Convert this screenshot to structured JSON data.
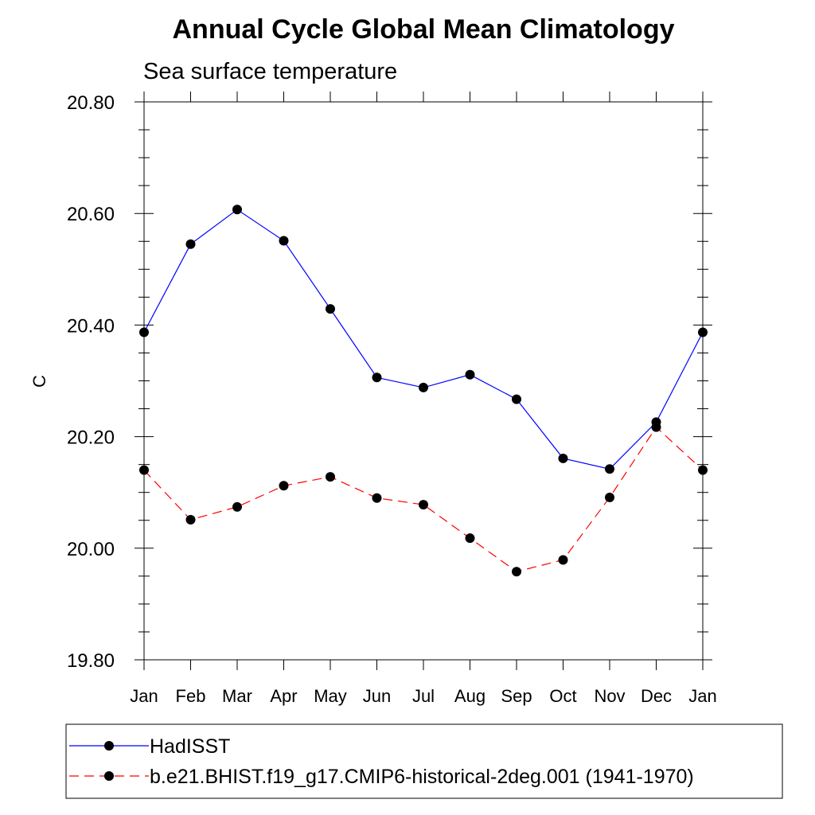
{
  "chart_data": {
    "type": "line",
    "title": "Annual Cycle Global Mean Climatology",
    "subtitle": "Sea surface temperature",
    "xlabel": "",
    "ylabel": "C",
    "categories": [
      "Jan",
      "Feb",
      "Mar",
      "Apr",
      "May",
      "Jun",
      "Jul",
      "Aug",
      "Sep",
      "Oct",
      "Nov",
      "Dec",
      "Jan"
    ],
    "ylim": [
      19.8,
      20.8
    ],
    "yticks": [
      "20.80",
      "20.60",
      "20.40",
      "20.20",
      "20.00",
      "19.80"
    ],
    "ytick_values": [
      20.8,
      20.6,
      20.4,
      20.2,
      20.0,
      19.8
    ],
    "grid": false,
    "legend_position": "bottom",
    "series": [
      {
        "name": "HadISST",
        "color": "#0000ff",
        "style": "solid",
        "values": [
          20.387,
          20.545,
          20.607,
          20.551,
          20.429,
          20.306,
          20.288,
          20.311,
          20.267,
          20.161,
          20.142,
          20.226,
          20.387
        ]
      },
      {
        "name": "b.e21.BHIST.f19_g17.CMIP6-historical-2deg.001 (1941-1970)",
        "color": "#ff0000",
        "style": "dashed",
        "values": [
          20.14,
          20.051,
          20.074,
          20.112,
          20.128,
          20.09,
          20.078,
          20.018,
          19.958,
          19.979,
          20.091,
          20.217,
          20.14
        ]
      }
    ]
  }
}
